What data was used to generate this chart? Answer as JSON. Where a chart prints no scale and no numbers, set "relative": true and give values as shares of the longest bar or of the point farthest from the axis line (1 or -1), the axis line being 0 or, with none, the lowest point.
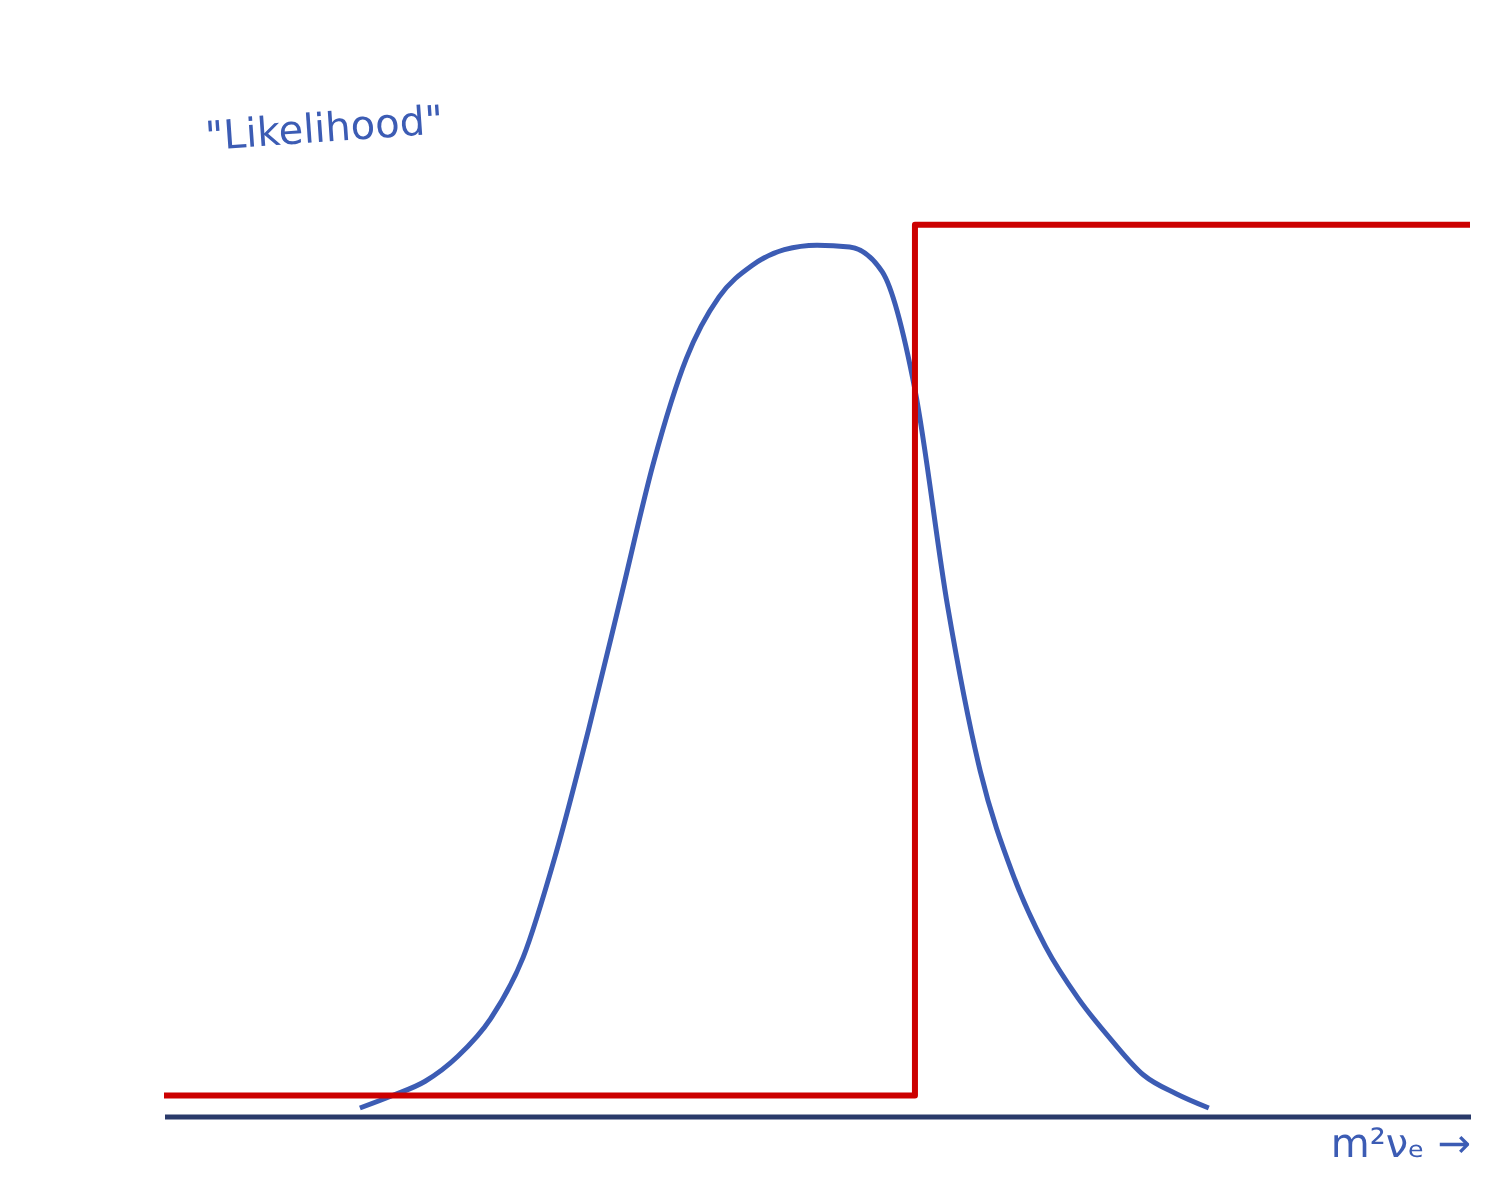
{
  "chart_data": {
    "type": "line",
    "relative": true,
    "xlabel": "m²νₑ →",
    "annotations": [
      "\"Likelihood\""
    ],
    "categories": [
      null,
      null,
      null,
      null,
      null,
      null,
      null,
      null,
      null,
      null,
      null,
      null,
      null,
      null,
      null,
      null,
      null,
      null,
      null,
      null,
      null,
      null,
      null,
      null,
      null,
      null,
      null,
      null,
      null,
      null,
      null,
      null,
      null,
      null,
      null,
      null,
      null,
      null,
      null,
      null,
      null
    ],
    "series": [
      {
        "color": "#3c5cb4",
        "values": [
          null,
          null,
          null,
          null,
          null,
          null,
          0.009,
          0.023,
          0.039,
          0.067,
          0.109,
          0.178,
          0.294,
          0.433,
          0.583,
          0.734,
          0.85,
          0.919,
          0.954,
          0.972,
          0.977,
          0.975,
          0.947,
          0.815,
          0.572,
          0.387,
          0.271,
          0.19,
          0.132,
          0.086,
          0.046,
          0.025,
          0.009,
          null,
          null,
          null,
          null,
          null,
          null,
          null,
          null
        ]
      },
      {
        "color": "#cc0000",
        "type": "step",
        "values": [
          0.023,
          0.023,
          0.023,
          0.023,
          0.023,
          0.023,
          0.023,
          0.023,
          0.023,
          0.023,
          0.023,
          0.023,
          0.023,
          0.023,
          0.023,
          0.023,
          0.023,
          0.023,
          0.023,
          0.023,
          0.023,
          0.023,
          0.023,
          1,
          1,
          1,
          1,
          1,
          1,
          1,
          1,
          1,
          1,
          1,
          1,
          1,
          1,
          1,
          1,
          1,
          1
        ]
      }
    ],
    "grid": false
  }
}
